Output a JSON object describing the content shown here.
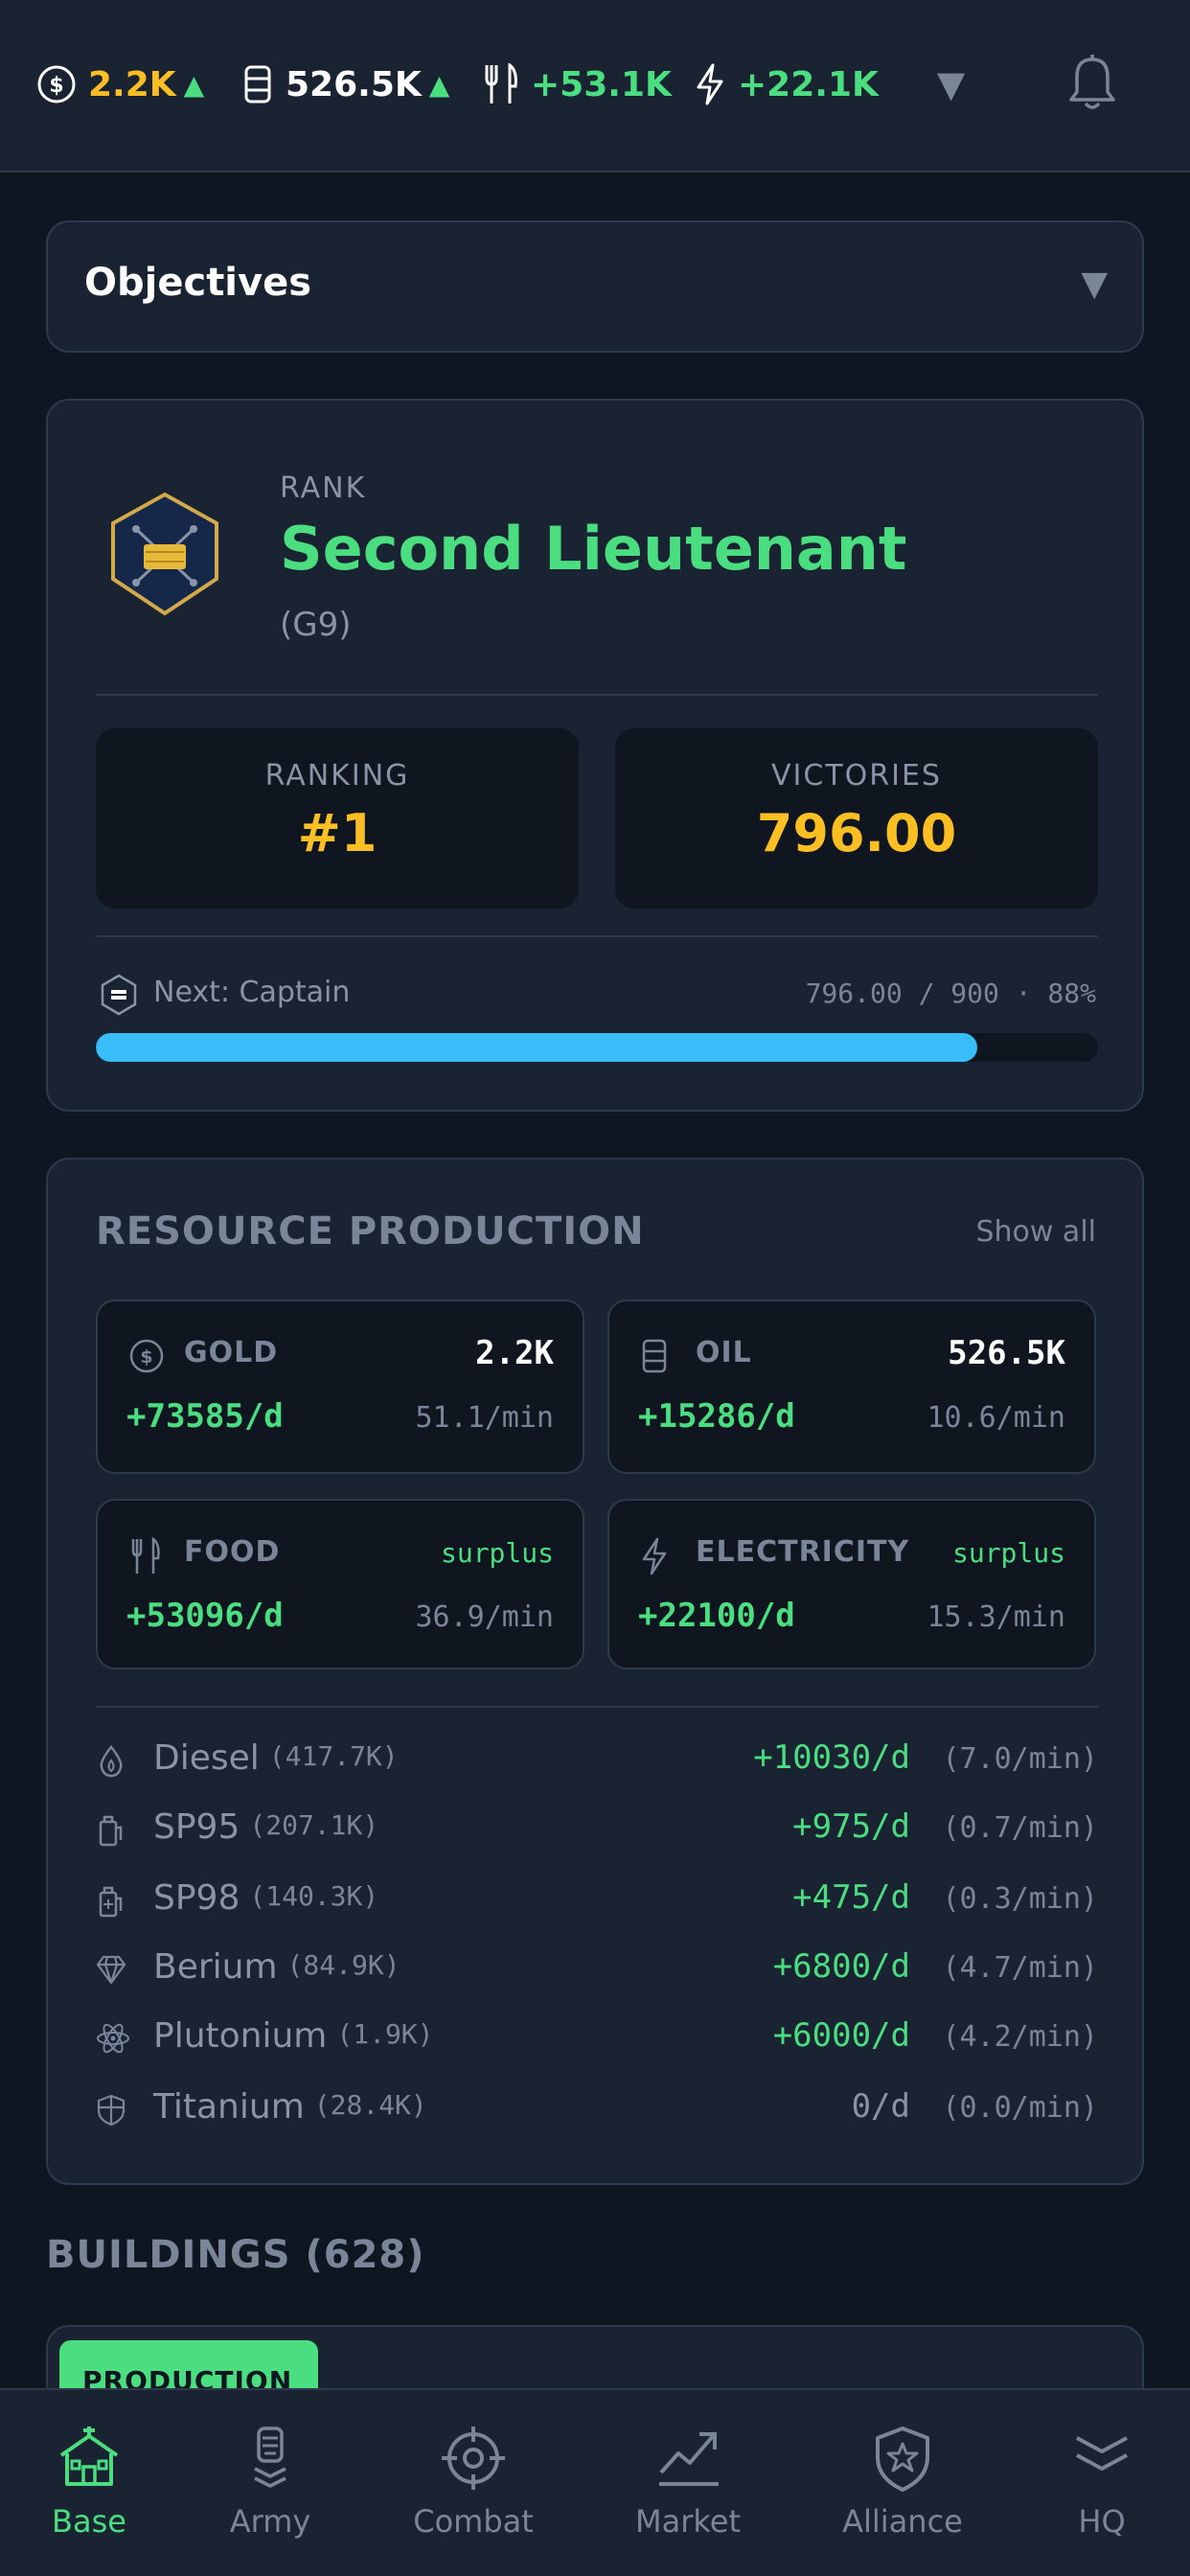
{
  "topbar": {
    "resources": [
      {
        "icon": "gold-coin-icon",
        "value": "2.2K",
        "color": "#fbbf24",
        "trend": "▲"
      },
      {
        "icon": "oil-barrel-icon",
        "value": "526.5K",
        "color": "#ffffff",
        "trend": "▲"
      },
      {
        "icon": "food-utensils-icon",
        "value": "+53.1K",
        "color": "#4ade80"
      },
      {
        "icon": "electricity-bolt-icon",
        "value": "+22.1K",
        "color": "#4ade80"
      }
    ],
    "dropdown_glyph": "▼"
  },
  "objectives": {
    "title": "Objectives",
    "toggle_glyph": "▼"
  },
  "rank": {
    "label": "RANK",
    "name": "Second Lieutenant",
    "grade": "(G9)",
    "ranking_label": "RANKING",
    "ranking_value": "#1",
    "victories_label": "VICTORIES",
    "victories_value": "796.00",
    "next_label": "Next: Captain",
    "progress_text": "796.00 / 900 · 88%",
    "progress_fraction": 0.88,
    "progress_color": "#38bdf8"
  },
  "production": {
    "title": "RESOURCE PRODUCTION",
    "show_all": "Show all",
    "main": [
      {
        "icon": "gold-coin-icon",
        "name": "GOLD",
        "amount": "2.2K",
        "rate": "+73585/d",
        "per_min": "51.1/min"
      },
      {
        "icon": "oil-barrel-icon",
        "name": "OIL",
        "amount": "526.5K",
        "rate": "+15286/d",
        "per_min": "10.6/min"
      },
      {
        "icon": "food-utensils-icon",
        "name": "FOOD",
        "amount": "surplus",
        "rate": "+53096/d",
        "per_min": "36.9/min"
      },
      {
        "icon": "electricity-bolt-icon",
        "name": "ELECTRICITY",
        "amount": "surplus",
        "rate": "+22100/d",
        "per_min": "15.3/min"
      }
    ],
    "secondary": [
      {
        "icon": "flame-drop-icon",
        "name": "Diesel",
        "stock": "(417.7K)",
        "rate": "+10030/d",
        "per_min": "(7.0/min)"
      },
      {
        "icon": "fuel-can-icon",
        "name": "SP95",
        "stock": "(207.1K)",
        "rate": "+975/d",
        "per_min": "(0.7/min)"
      },
      {
        "icon": "fuel-can-plus-icon",
        "name": "SP98",
        "stock": "(140.3K)",
        "rate": "+475/d",
        "per_min": "(0.3/min)"
      },
      {
        "icon": "gem-icon",
        "name": "Berium",
        "stock": "(84.9K)",
        "rate": "+6800/d",
        "per_min": "(4.7/min)"
      },
      {
        "icon": "atom-icon",
        "name": "Plutonium",
        "stock": "(1.9K)",
        "rate": "+6000/d",
        "per_min": "(4.2/min)"
      },
      {
        "icon": "shield-half-icon",
        "name": "Titanium",
        "stock": "(28.4K)",
        "rate": "0/d",
        "per_min": "(0.0/min)"
      }
    ]
  },
  "buildings": {
    "title": "BUILDINGS (628)",
    "first_tag": "PRODUCTION"
  },
  "nav": {
    "items": [
      {
        "icon": "home-base-icon",
        "label": "Base",
        "active": true
      },
      {
        "icon": "army-soldier-icon",
        "label": "Army"
      },
      {
        "icon": "crosshair-icon",
        "label": "Combat"
      },
      {
        "icon": "trend-chart-icon",
        "label": "Market"
      },
      {
        "icon": "alliance-shield-star-icon",
        "label": "Alliance"
      },
      {
        "icon": "chevrons-down-icon",
        "label": "HQ"
      }
    ]
  }
}
